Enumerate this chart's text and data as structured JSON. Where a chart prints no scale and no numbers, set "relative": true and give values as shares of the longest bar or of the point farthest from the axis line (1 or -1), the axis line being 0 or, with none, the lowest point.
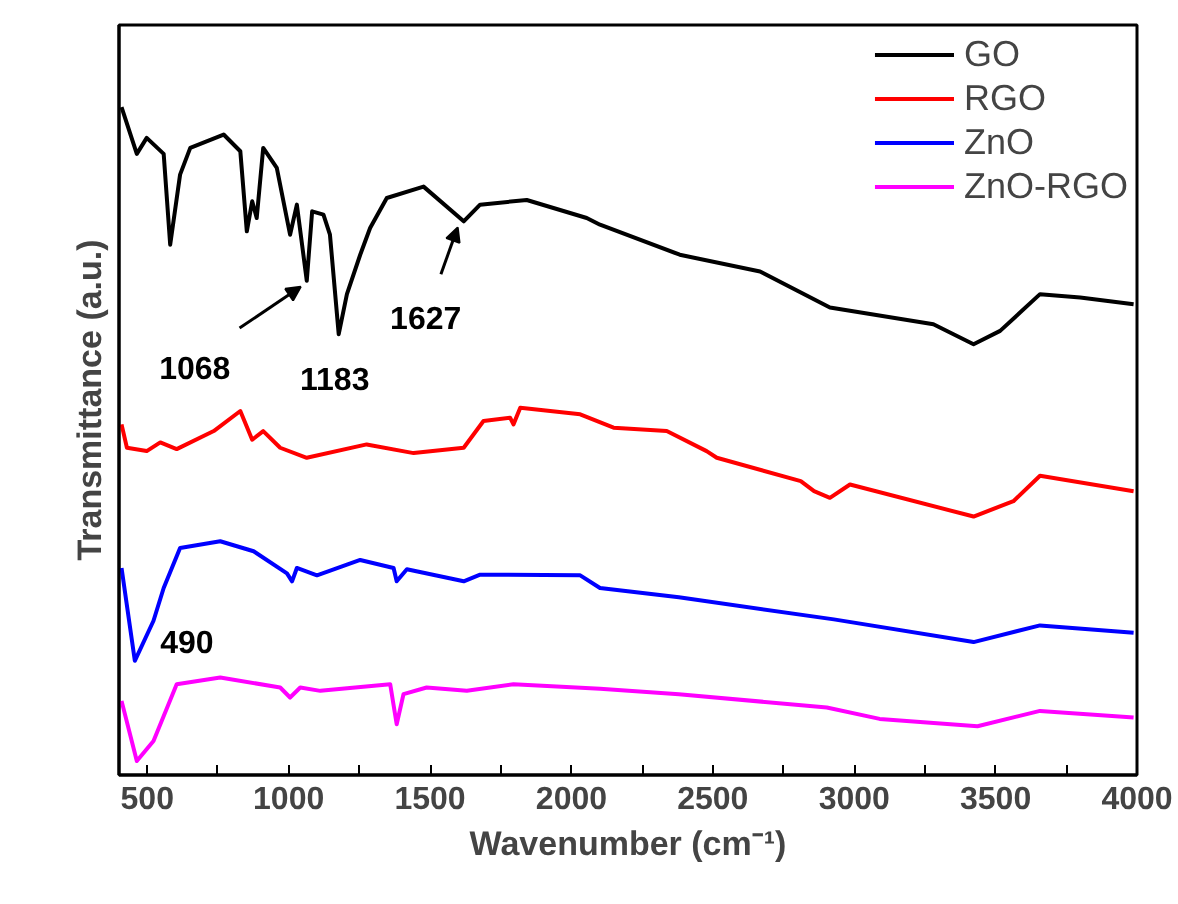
{
  "chart_data": {
    "type": "line",
    "relative": true,
    "xlabel": "Wavenumber (cm⁻¹)",
    "ylabel": "Transmittance (a.u.)",
    "xlim": [
      400,
      4000
    ],
    "xticks": [
      500,
      {
        "value": 750,
        "label": null
      },
      1000,
      {
        "value": 1250,
        "label": null
      },
      1500,
      {
        "value": 1750,
        "label": null
      },
      2000,
      {
        "value": 2250,
        "label": null
      },
      2500,
      {
        "value": 2750,
        "label": null
      },
      3000,
      {
        "value": 3250,
        "label": null
      },
      3500,
      {
        "value": 3750,
        "label": null
      },
      4000
    ],
    "tick_labels": "x",
    "grid": false,
    "legend": "top right",
    "line_style": "solid",
    "marker": "none",
    "annotations": [
      {
        "text": "1068",
        "x": 1064,
        "y": 0.74
      },
      {
        "text": "1183",
        "x": 1177,
        "y": 0.66
      },
      {
        "text": "1627",
        "x": 1619,
        "y": 0.829
      },
      {
        "text": "490",
        "x": 456,
        "y": 0.171
      }
    ],
    "series": [
      {
        "name": "GO",
        "color": "#000000",
        "x": [
          409,
          463,
          498,
          558,
          581,
          616,
          652,
          770,
          829,
          852,
          871,
          887,
          910,
          958,
          1005,
          1029,
          1064,
          1083,
          1123,
          1146,
          1177,
          1206,
          1253,
          1288,
          1347,
          1477,
          1619,
          1677,
          1842,
          2054,
          2101,
          2383,
          2667,
          2914,
          3280,
          3422,
          3516,
          3657,
          3799,
          3988
        ],
        "values": [
          1.0,
          0.93,
          0.954,
          0.93,
          0.794,
          0.899,
          0.939,
          0.959,
          0.934,
          0.814,
          0.859,
          0.834,
          0.939,
          0.909,
          0.809,
          0.854,
          0.74,
          0.844,
          0.839,
          0.809,
          0.66,
          0.72,
          0.779,
          0.819,
          0.864,
          0.881,
          0.829,
          0.854,
          0.861,
          0.834,
          0.824,
          0.779,
          0.754,
          0.7,
          0.675,
          0.645,
          0.665,
          0.72,
          0.715,
          0.705
        ]
      },
      {
        "name": "RGO",
        "color": "#ff0000",
        "x": [
          409,
          428,
          498,
          546,
          604,
          735,
          829,
          871,
          910,
          970,
          1064,
          1276,
          1442,
          1619,
          1689,
          1783,
          1795,
          1819,
          2031,
          2149,
          2337,
          2478,
          2514,
          2811,
          2858,
          2914,
          2985,
          3422,
          3563,
          3657,
          3988
        ],
        "values": [
          0.525,
          0.49,
          0.485,
          0.498,
          0.488,
          0.515,
          0.545,
          0.502,
          0.515,
          0.49,
          0.475,
          0.495,
          0.482,
          0.49,
          0.53,
          0.535,
          0.525,
          0.55,
          0.54,
          0.52,
          0.515,
          0.485,
          0.475,
          0.44,
          0.425,
          0.415,
          0.435,
          0.387,
          0.41,
          0.448,
          0.425
        ]
      },
      {
        "name": "ZnO",
        "color": "#0000ff",
        "x": [
          409,
          456,
          522,
          558,
          616,
          758,
          876,
          994,
          1012,
          1029,
          1100,
          1253,
          1371,
          1382,
          1418,
          1619,
          1677,
          2031,
          2101,
          2380,
          2928,
          3422,
          3657,
          3988
        ],
        "values": [
          0.31,
          0.171,
          0.231,
          0.28,
          0.34,
          0.35,
          0.335,
          0.302,
          0.29,
          0.31,
          0.299,
          0.322,
          0.31,
          0.29,
          0.308,
          0.29,
          0.3,
          0.299,
          0.28,
          0.266,
          0.233,
          0.199,
          0.224,
          0.213
        ]
      },
      {
        "name": "ZnO-RGO",
        "color": "#ff00ff",
        "x": [
          409,
          463,
          522,
          604,
          758,
          970,
          1005,
          1041,
          1112,
          1359,
          1382,
          1406,
          1488,
          1630,
          1795,
          2101,
          2380,
          2903,
          3090,
          3436,
          3657,
          3988
        ],
        "values": [
          0.111,
          0.021,
          0.051,
          0.136,
          0.146,
          0.131,
          0.116,
          0.131,
          0.126,
          0.136,
          0.076,
          0.121,
          0.131,
          0.126,
          0.136,
          0.129,
          0.121,
          0.101,
          0.084,
          0.073,
          0.096,
          0.086
        ]
      }
    ]
  }
}
